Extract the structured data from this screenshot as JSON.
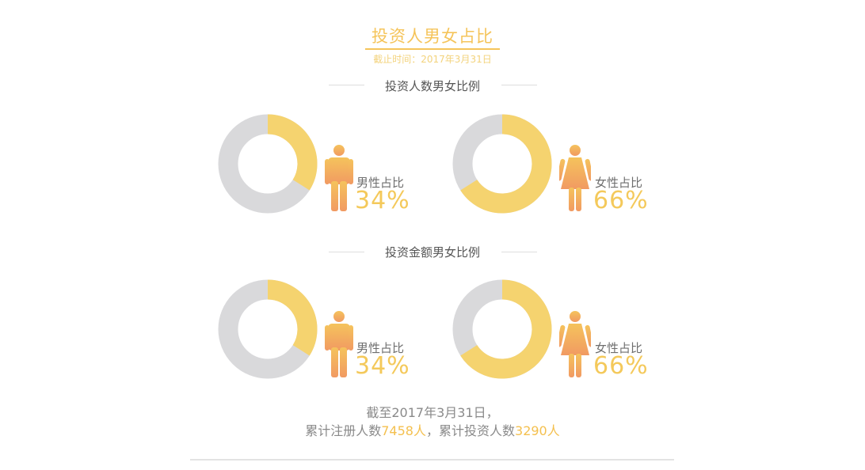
{
  "header": {
    "title": "投资人男女占比",
    "subtitle": "截止时间：2017年3月31日"
  },
  "sections": [
    {
      "heading": "投资人数男女比例"
    },
    {
      "heading": "投资金额男女比例"
    }
  ],
  "colors": {
    "track": "#d9d9db",
    "fill": "#f5d36f",
    "icon_top": "#f5c35c",
    "icon_bottom": "#f19a62"
  },
  "chart_data": [
    {
      "type": "pie",
      "group": "投资人数男女比例",
      "label": "男性占比",
      "value": 34,
      "value_text": "34%",
      "icon": "male-icon"
    },
    {
      "type": "pie",
      "group": "投资人数男女比例",
      "label": "女性占比",
      "value": 66,
      "value_text": "66%",
      "icon": "female-icon"
    },
    {
      "type": "pie",
      "group": "投资金额男女比例",
      "label": "男性占比",
      "value": 34,
      "value_text": "34%",
      "icon": "male-icon"
    },
    {
      "type": "pie",
      "group": "投资金额男女比例",
      "label": "女性占比",
      "value": 66,
      "value_text": "66%",
      "icon": "female-icon"
    }
  ],
  "footer": {
    "line1": "截至2017年3月31日，",
    "reg_prefix": "累计注册人数",
    "reg_count": "7458人",
    "separator": "，",
    "inv_prefix": "累计投资人数",
    "inv_count": "3290人"
  }
}
